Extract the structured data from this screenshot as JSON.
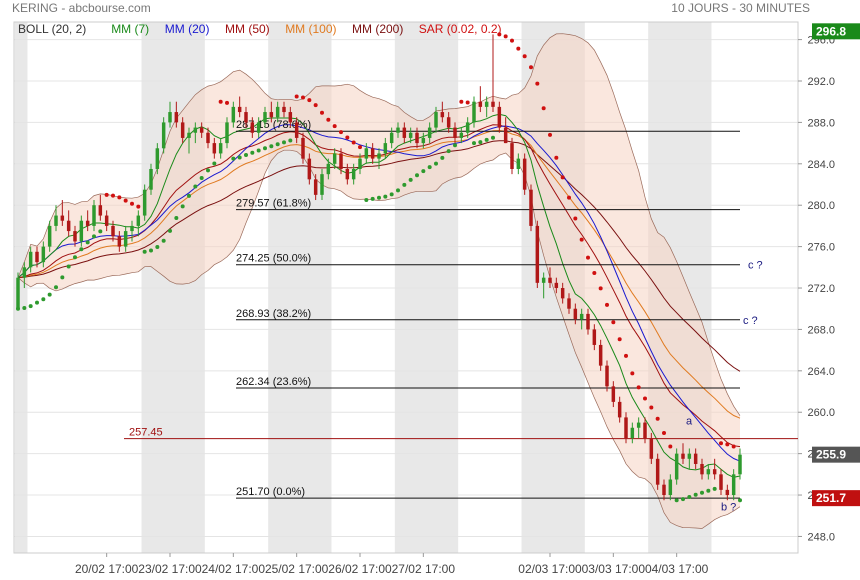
{
  "header": {
    "symbol_source": "KERING - abcbourse.com",
    "period": "10 JOURS - 30 MINUTES"
  },
  "legend": [
    {
      "label": "BOLL (20, 2)",
      "color": "#333333"
    },
    {
      "label": "MM (7)",
      "color": "#1a8a1a"
    },
    {
      "label": "MM (20)",
      "color": "#1a1ad0"
    },
    {
      "label": "MM (50)",
      "color": "#a01010"
    },
    {
      "label": "MM (100)",
      "color": "#e07a20"
    },
    {
      "label": "MM (200)",
      "color": "#7a1010"
    },
    {
      "label": "SAR (0.02, 0.2)",
      "color": "#d01010"
    }
  ],
  "chart_data": {
    "type": "candlestick",
    "ylim": [
      246.4,
      297.7
    ],
    "y_ticks": [
      248.0,
      252.0,
      256.0,
      260.0,
      264.0,
      268.0,
      272.0,
      276.0,
      280.0,
      284.0,
      288.0,
      292.0,
      296.0
    ],
    "x_tick_labels": [
      "20/02 17:00",
      "23/02 17:00",
      "24/02 17:00",
      "25/02 17:00",
      "26/02 17:00",
      "27/02 17:00",
      "02/03 17:00",
      "03/03 17:00",
      "04/03 17:00"
    ],
    "price_tags": [
      {
        "value": 296.8,
        "text": "296.8",
        "color": "#1a8a1a"
      },
      {
        "value": 255.9,
        "text": "255.9",
        "color": "#555555"
      },
      {
        "value": 251.7,
        "text": "251.7",
        "color": "#c01010"
      }
    ],
    "fib_levels": [
      {
        "value": 287.15,
        "label": "287.15  (78.6%)"
      },
      {
        "value": 279.57,
        "label": "279.57  (61.8%)"
      },
      {
        "value": 274.25,
        "label": "274.25  (50.0%)"
      },
      {
        "value": 268.93,
        "label": "268.93  (38.2%)"
      },
      {
        "value": 262.34,
        "label": "262.34  (23.6%)"
      },
      {
        "value": 251.7,
        "label": "251.70  (0.0%)"
      }
    ],
    "hline": {
      "value": 257.45,
      "label": "257.45"
    },
    "annotations": [
      {
        "text": "c ?",
        "value": 274.25
      },
      {
        "text": "c ?",
        "value": 268.93
      },
      {
        "text": "a",
        "value": 259.2
      },
      {
        "text": "b ?",
        "value": 250.9
      }
    ],
    "candles": [
      [
        270.0,
        273.5,
        270.0,
        273.0
      ],
      [
        273.0,
        274.5,
        272.0,
        274.0
      ],
      [
        274.0,
        276.0,
        273.5,
        275.5
      ],
      [
        275.5,
        276.0,
        274.0,
        274.5
      ],
      [
        274.5,
        276.5,
        274.0,
        276.0
      ],
      [
        276.0,
        278.5,
        275.5,
        278.0
      ],
      [
        278.0,
        280.0,
        277.5,
        279.0
      ],
      [
        279.0,
        280.5,
        278.0,
        278.5
      ],
      [
        278.5,
        279.5,
        277.0,
        277.5
      ],
      [
        277.5,
        278.0,
        276.0,
        276.5
      ],
      [
        276.5,
        279.0,
        276.0,
        278.5
      ],
      [
        278.5,
        279.5,
        277.5,
        278.0
      ],
      [
        278.0,
        280.5,
        277.5,
        280.0
      ],
      [
        280.0,
        281.0,
        278.5,
        279.0
      ],
      [
        279.0,
        279.5,
        277.5,
        278.0
      ],
      [
        278.0,
        278.5,
        276.5,
        277.0
      ],
      [
        277.0,
        277.5,
        275.5,
        276.0
      ],
      [
        276.0,
        278.0,
        275.5,
        277.5
      ],
      [
        277.5,
        278.5,
        276.5,
        278.0
      ],
      [
        278.0,
        279.5,
        277.0,
        279.0
      ],
      [
        279.0,
        282.0,
        278.5,
        281.5
      ],
      [
        281.5,
        284.0,
        281.0,
        283.5
      ],
      [
        283.5,
        286.0,
        283.0,
        285.5
      ],
      [
        285.5,
        288.5,
        285.0,
        288.0
      ],
      [
        288.0,
        290.0,
        287.5,
        289.0
      ],
      [
        289.0,
        290.0,
        287.5,
        288.0
      ],
      [
        288.0,
        288.5,
        286.0,
        286.5
      ],
      [
        286.5,
        287.5,
        285.0,
        287.0
      ],
      [
        287.0,
        288.0,
        286.0,
        287.5
      ],
      [
        287.5,
        288.0,
        286.5,
        287.0
      ],
      [
        287.0,
        287.5,
        285.5,
        286.0
      ],
      [
        286.0,
        286.5,
        284.5,
        285.0
      ],
      [
        285.0,
        286.5,
        284.5,
        286.0
      ],
      [
        286.0,
        288.5,
        285.5,
        288.0
      ],
      [
        288.0,
        290.0,
        287.5,
        289.5
      ],
      [
        289.5,
        290.5,
        288.5,
        289.0
      ],
      [
        289.0,
        289.5,
        287.5,
        288.0
      ],
      [
        288.0,
        288.5,
        286.5,
        287.0
      ],
      [
        287.0,
        288.5,
        286.5,
        288.0
      ],
      [
        288.0,
        289.5,
        287.5,
        289.0
      ],
      [
        289.0,
        290.0,
        288.0,
        288.5
      ],
      [
        288.5,
        290.0,
        288.0,
        289.5
      ],
      [
        289.5,
        290.0,
        288.5,
        289.0
      ],
      [
        289.0,
        289.5,
        287.5,
        288.0
      ],
      [
        288.0,
        288.5,
        286.0,
        286.5
      ],
      [
        286.5,
        287.0,
        284.0,
        284.5
      ],
      [
        284.5,
        285.0,
        282.0,
        282.5
      ],
      [
        282.5,
        283.0,
        280.5,
        281.0
      ],
      [
        281.0,
        283.5,
        280.5,
        283.0
      ],
      [
        283.0,
        284.5,
        282.5,
        284.0
      ],
      [
        284.0,
        285.5,
        283.5,
        285.0
      ],
      [
        285.0,
        285.5,
        283.0,
        283.5
      ],
      [
        283.5,
        284.0,
        282.0,
        282.5
      ],
      [
        282.5,
        284.0,
        282.0,
        283.5
      ],
      [
        283.5,
        285.0,
        283.0,
        284.5
      ],
      [
        284.5,
        286.0,
        284.0,
        285.5
      ],
      [
        285.5,
        286.0,
        284.0,
        284.5
      ],
      [
        284.5,
        285.5,
        283.5,
        285.0
      ],
      [
        285.0,
        286.5,
        284.5,
        286.0
      ],
      [
        286.0,
        287.5,
        285.5,
        287.0
      ],
      [
        287.0,
        288.0,
        286.5,
        287.5
      ],
      [
        287.5,
        288.0,
        286.0,
        286.5
      ],
      [
        286.5,
        287.5,
        286.0,
        287.0
      ],
      [
        287.0,
        287.5,
        285.5,
        286.0
      ],
      [
        286.0,
        287.0,
        285.5,
        286.5
      ],
      [
        286.5,
        288.0,
        286.0,
        287.5
      ],
      [
        287.5,
        289.5,
        287.0,
        289.0
      ],
      [
        289.0,
        290.0,
        288.0,
        288.5
      ],
      [
        288.5,
        289.0,
        287.0,
        287.5
      ],
      [
        287.5,
        288.0,
        286.0,
        286.5
      ],
      [
        286.5,
        287.5,
        286.0,
        287.0
      ],
      [
        287.0,
        288.5,
        286.5,
        288.0
      ],
      [
        288.0,
        290.5,
        287.5,
        290.0
      ],
      [
        290.0,
        291.5,
        289.0,
        289.5
      ],
      [
        289.5,
        290.5,
        288.5,
        290.0
      ],
      [
        290.0,
        296.5,
        289.0,
        289.5
      ],
      [
        289.5,
        290.0,
        287.0,
        287.5
      ],
      [
        287.5,
        288.5,
        286.0,
        286.0
      ],
      [
        286.0,
        286.5,
        283.0,
        283.5
      ],
      [
        283.5,
        285.0,
        283.0,
        284.5
      ],
      [
        284.5,
        285.0,
        281.0,
        281.5
      ],
      [
        281.5,
        282.0,
        277.5,
        278.0
      ],
      [
        278.0,
        278.5,
        272.0,
        272.5
      ],
      [
        272.5,
        273.5,
        271.0,
        273.0
      ],
      [
        273.0,
        274.0,
        272.0,
        272.5
      ],
      [
        272.5,
        273.0,
        271.5,
        272.0
      ],
      [
        272.0,
        272.5,
        270.5,
        271.0
      ],
      [
        271.0,
        271.5,
        269.5,
        270.0
      ],
      [
        270.0,
        270.5,
        268.5,
        269.0
      ],
      [
        269.0,
        270.0,
        268.0,
        269.5
      ],
      [
        269.5,
        270.0,
        267.5,
        268.0
      ],
      [
        268.0,
        268.5,
        266.0,
        266.5
      ],
      [
        266.5,
        267.0,
        264.0,
        264.5
      ],
      [
        264.5,
        265.0,
        262.0,
        262.5
      ],
      [
        262.5,
        263.0,
        260.5,
        261.0
      ],
      [
        261.0,
        261.5,
        259.0,
        259.5
      ],
      [
        259.5,
        260.0,
        257.0,
        257.5
      ],
      [
        257.5,
        259.0,
        257.0,
        258.5
      ],
      [
        258.5,
        259.5,
        257.5,
        259.0
      ],
      [
        259.0,
        259.5,
        257.0,
        257.5
      ],
      [
        257.5,
        258.0,
        255.0,
        255.5
      ],
      [
        255.5,
        256.0,
        252.5,
        253.0
      ],
      [
        253.0,
        253.5,
        251.5,
        252.0
      ],
      [
        252.0,
        254.0,
        251.5,
        253.5
      ],
      [
        253.5,
        256.5,
        253.0,
        256.0
      ],
      [
        256.0,
        257.0,
        255.0,
        255.5
      ],
      [
        255.5,
        256.5,
        254.5,
        256.0
      ],
      [
        256.0,
        256.5,
        254.5,
        255.0
      ],
      [
        255.0,
        255.5,
        253.5,
        254.0
      ],
      [
        254.0,
        255.0,
        253.5,
        254.5
      ],
      [
        254.5,
        255.5,
        253.5,
        254.0
      ],
      [
        254.0,
        254.5,
        252.0,
        252.5
      ],
      [
        252.5,
        253.0,
        251.5,
        252.0
      ],
      [
        252.0,
        254.5,
        251.5,
        254.0
      ],
      [
        254.0,
        256.5,
        253.5,
        255.9
      ]
    ],
    "last_close": 255.9
  }
}
